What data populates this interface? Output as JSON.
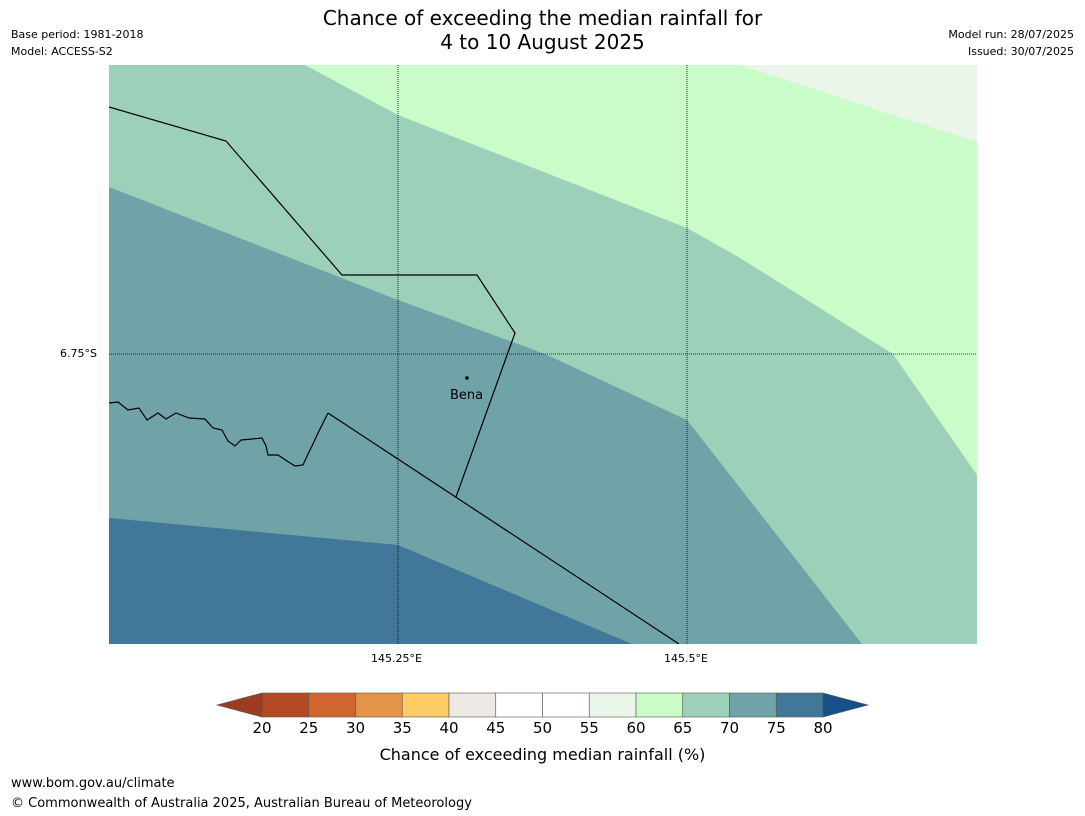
{
  "header": {
    "title_line1": "Chance of exceeding the median rainfall for",
    "title_line2": "4 to 10 August 2025",
    "base_period": "Base period: 1981-2018",
    "model": "Model: ACCESS-S2",
    "model_run": "Model run: 28/07/2025",
    "issued": "Issued: 30/07/2025"
  },
  "map": {
    "lat_label": "6.75°S",
    "lon_labels": [
      "145.25°E",
      "145.5°E"
    ],
    "place_label": "Bena"
  },
  "colorbar": {
    "label": "Chance of exceeding median rainfall (%)",
    "ticks": [
      "20",
      "25",
      "30",
      "35",
      "40",
      "45",
      "50",
      "55",
      "60",
      "65",
      "70",
      "75",
      "80"
    ],
    "colors": [
      "#9c3c22",
      "#b34a24",
      "#d0652f",
      "#e39446",
      "#fdcb66",
      "#ede9e5",
      "#ffffff",
      "#ffffff",
      "#e9f6e9",
      "#c9fcc9",
      "#9dd0b8",
      "#6fa3a7",
      "#417899",
      "#175089"
    ]
  },
  "chart_data": {
    "type": "heatmap",
    "title": "Chance of exceeding the median rainfall for 4 to 10 August 2025",
    "xlabel": "",
    "ylabel": "",
    "x_ticks": [
      "145.25°E",
      "145.5°E"
    ],
    "y_ticks": [
      "6.75°S"
    ],
    "colorbar_label": "Chance of exceeding median rainfall (%)",
    "colorbar_ticks": [
      20,
      25,
      30,
      35,
      40,
      45,
      50,
      55,
      60,
      65,
      70,
      75,
      80
    ],
    "zones_present": [
      {
        "range": "55-60",
        "color": "#e9f6e9"
      },
      {
        "range": "60-65",
        "color": "#c9fcc9"
      },
      {
        "range": "65-70",
        "color": "#9dd0b8"
      },
      {
        "range": "70-75",
        "color": "#6fa3a7"
      },
      {
        "range": "75-80",
        "color": "#417899"
      }
    ],
    "places": [
      "Bena"
    ]
  },
  "footer": {
    "url": "www.bom.gov.au/climate",
    "copyright": "© Commonwealth of Australia 2025, Australian Bureau of Meteorology"
  }
}
